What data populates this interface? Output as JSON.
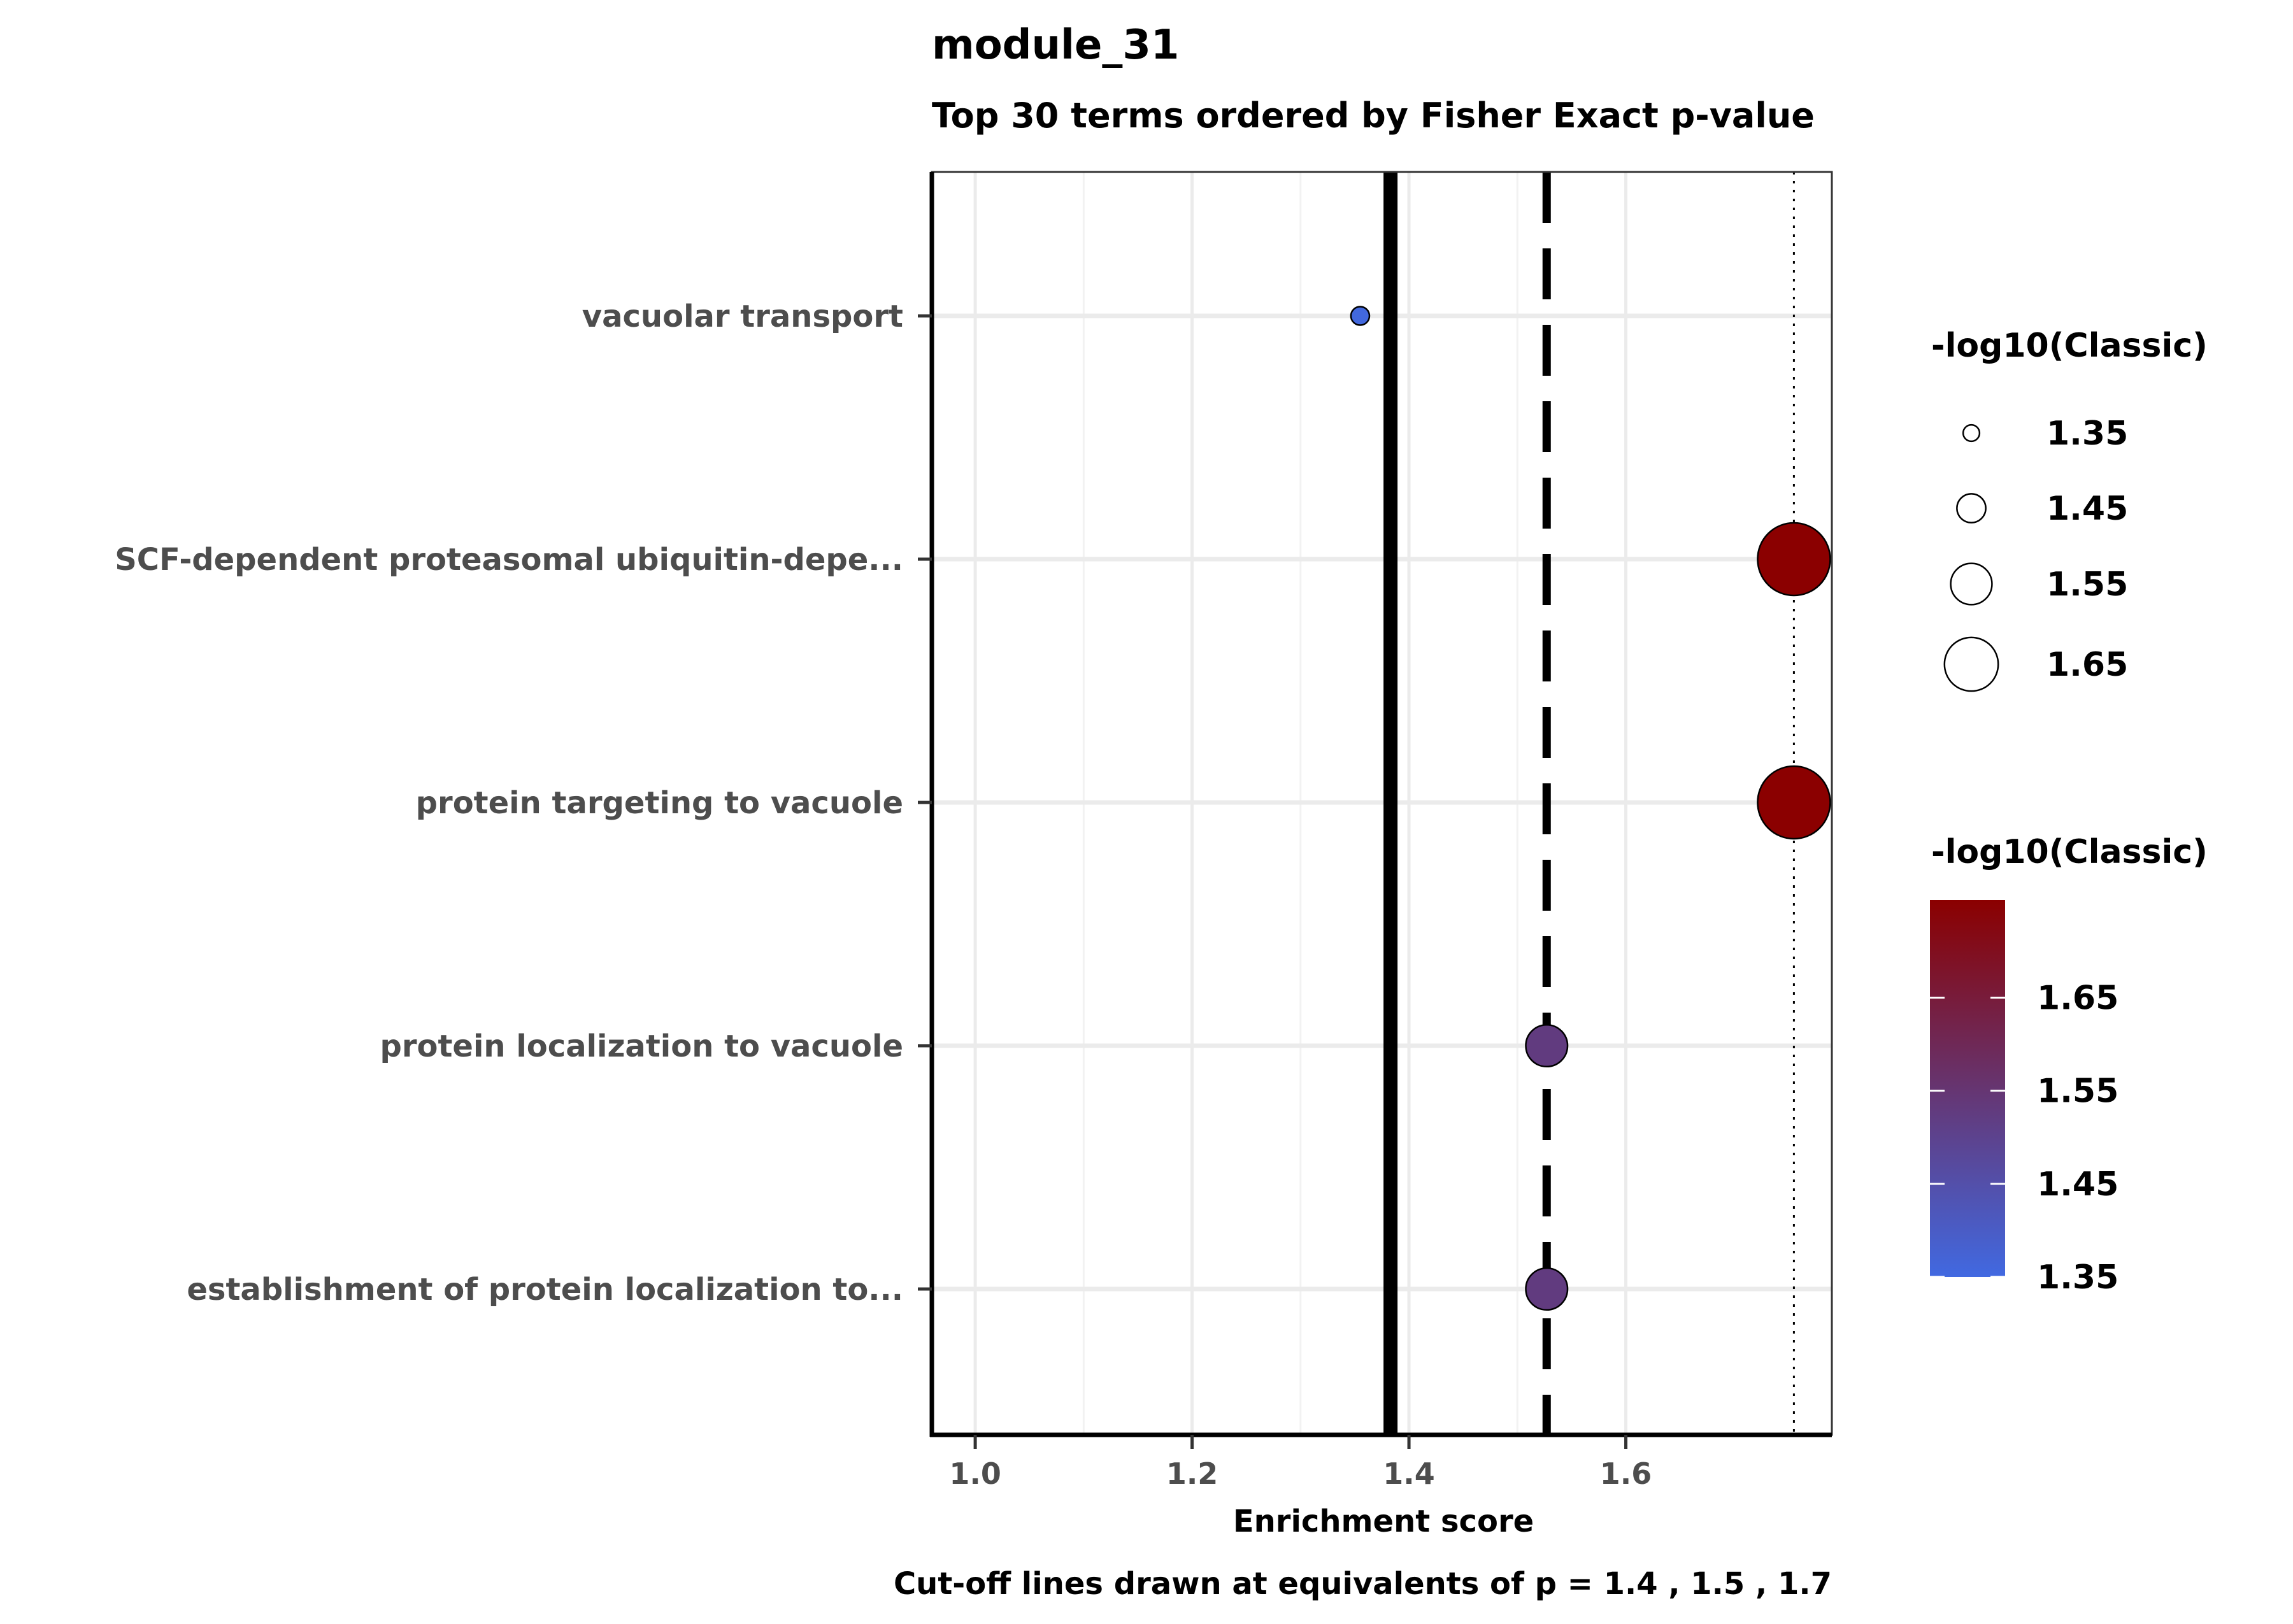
{
  "chart_data": {
    "type": "scatter",
    "title": "module_31",
    "subtitle": "Top 30 terms ordered by Fisher Exact p-value",
    "xlabel": "Enrichment score",
    "caption": "Cut-off lines drawn at equivalents of p = 1.4 , 1.5 , 1.7",
    "xlim": [
      0.96,
      1.79
    ],
    "x_ticks": [
      "1.0",
      "1.2",
      "1.4",
      "1.6"
    ],
    "x_tick_values": [
      1.0,
      1.2,
      1.4,
      1.6
    ],
    "grid": true,
    "categories": [
      "vacuolar transport",
      "SCF-dependent proteasomal ubiquitin-depe...",
      "protein targeting to vacuole",
      "protein localization to vacuole",
      "establishment of protein localization to..."
    ],
    "series": [
      {
        "x": [
          1.355,
          1.755,
          1.755,
          1.527,
          1.527
        ],
        "neg_log10_classic": [
          1.355,
          1.755,
          1.755,
          1.527,
          1.527
        ]
      }
    ],
    "cutoff_lines": [
      {
        "x": 1.383,
        "style": "solid"
      },
      {
        "x": 1.527,
        "style": "dashed"
      },
      {
        "x": 1.755,
        "style": "dotted"
      }
    ],
    "size_legend": {
      "title": "-log10(Classic)",
      "labels": [
        "1.35",
        "1.45",
        "1.55",
        "1.65"
      ],
      "values": [
        1.35,
        1.45,
        1.55,
        1.65
      ]
    },
    "color_legend": {
      "title": "-log10(Classic)",
      "labels": [
        "1.65",
        "1.55",
        "1.45",
        "1.35"
      ],
      "values": [
        1.65,
        1.55,
        1.45,
        1.35
      ],
      "range": [
        1.35,
        1.755
      ],
      "low_color": "#4169e1",
      "high_color": "#8b0000"
    }
  }
}
